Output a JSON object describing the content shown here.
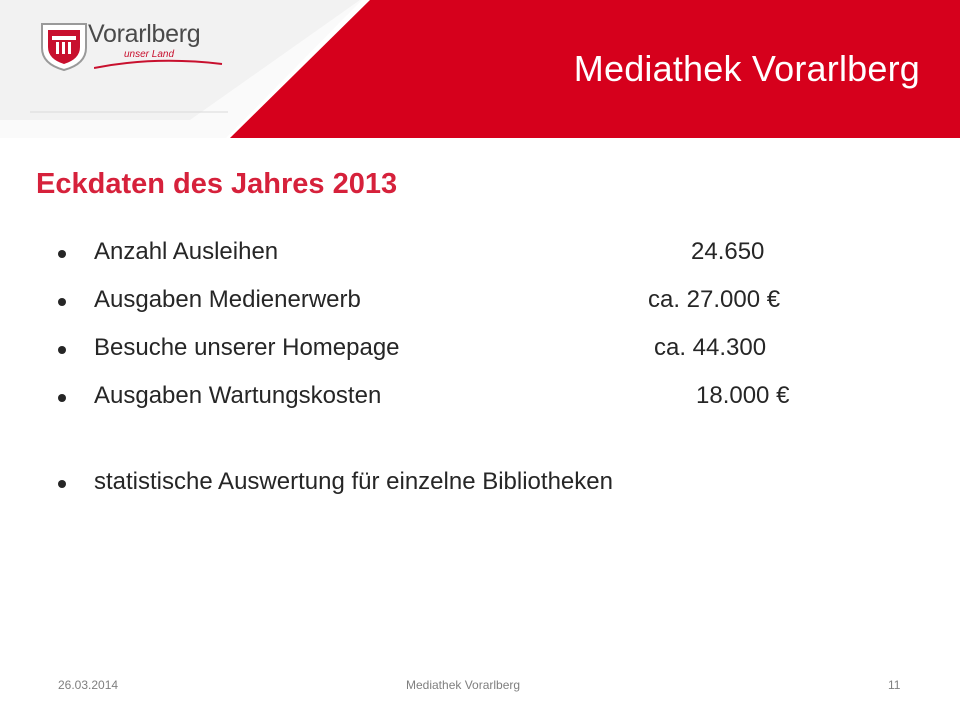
{
  "header": {
    "title": "Mediathek Vorarlberg",
    "logo_name": "Vorarlberg",
    "logo_tagline": "unser Land",
    "colors": {
      "red": "#d6001c",
      "title_red": "#d6213b"
    }
  },
  "slide": {
    "title": "Eckdaten des Jahres 2013",
    "items": [
      {
        "label": "Anzahl Ausleihen",
        "value": "24.650"
      },
      {
        "label": "Ausgaben Medienerwerb",
        "value": "ca. 27.000 €"
      },
      {
        "label": "Besuche unserer Homepage",
        "value": "ca. 44.300"
      },
      {
        "label": "Ausgaben Wartungskosten",
        "value": "18.000 €"
      }
    ],
    "extra_item": "statistische Auswertung für einzelne Bibliotheken"
  },
  "footer": {
    "date": "26.03.2014",
    "center": "Mediathek Vorarlberg",
    "page": "11"
  }
}
